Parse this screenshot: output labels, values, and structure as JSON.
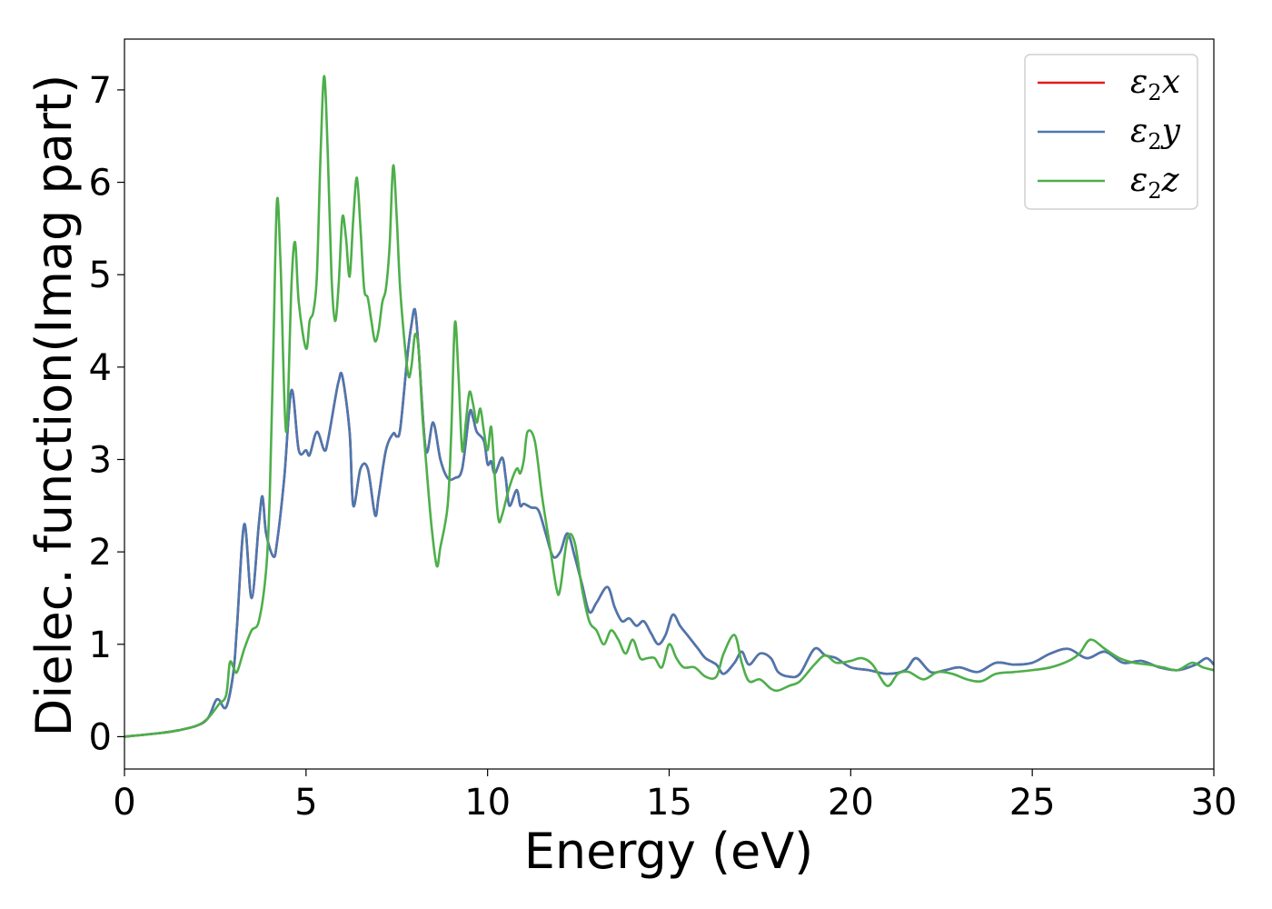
{
  "chart_data": {
    "type": "line",
    "xlabel": "Energy (eV)",
    "ylabel": "Dielec. function(Imag part)",
    "xlim": [
      0,
      30
    ],
    "ylim": [
      -0.35,
      7.55
    ],
    "xticks": [
      0,
      5,
      10,
      15,
      20,
      25,
      30
    ],
    "yticks": [
      0,
      1,
      2,
      3,
      4,
      5,
      6,
      7
    ],
    "grid": false,
    "legend_position": "top-right",
    "series": [
      {
        "name": "ε₂x",
        "legend_base": "ε",
        "legend_sub": "2",
        "legend_var": "x",
        "color": "#e41a1c",
        "x": [
          0,
          1,
          1.5,
          2,
          2.3,
          2.5,
          2.6,
          2.8,
          3.0,
          3.1,
          3.3,
          3.5,
          3.7,
          3.8,
          3.9,
          4.1,
          4.2,
          4.4,
          4.6,
          4.8,
          5.0,
          5.1,
          5.3,
          5.5,
          5.6,
          5.8,
          5.9,
          6.0,
          6.2,
          6.3,
          6.5,
          6.7,
          6.9,
          7.0,
          7.2,
          7.4,
          7.5,
          7.6,
          7.8,
          7.9,
          8.0,
          8.1,
          8.3,
          8.5,
          8.7,
          8.9,
          9.1,
          9.3,
          9.5,
          9.6,
          9.7,
          9.9,
          10.0,
          10.1,
          10.2,
          10.4,
          10.5,
          10.6,
          10.8,
          10.9,
          11.0,
          11.2,
          11.4,
          11.6,
          11.8,
          12.0,
          12.2,
          12.4,
          12.6,
          12.8,
          13.0,
          13.3,
          13.5,
          13.7,
          13.9,
          14.1,
          14.3,
          14.5,
          14.7,
          14.9,
          15.1,
          15.3,
          15.5,
          15.8,
          16.0,
          16.3,
          16.5,
          16.8,
          17.0,
          17.2,
          17.5,
          17.8,
          18.0,
          18.3,
          18.6,
          19.0,
          19.3,
          19.6,
          20.0,
          20.5,
          21.0,
          21.5,
          21.8,
          22.2,
          22.6,
          23.0,
          23.5,
          24.0,
          24.5,
          25.0,
          25.5,
          26.0,
          26.5,
          27.0,
          27.5,
          28.0,
          28.5,
          29.0,
          29.5,
          29.8,
          30.0
        ],
        "y": [
          0,
          0.04,
          0.07,
          0.12,
          0.2,
          0.38,
          0.4,
          0.32,
          0.7,
          1.2,
          2.3,
          1.5,
          2.3,
          2.6,
          2.2,
          1.95,
          2.1,
          2.8,
          3.75,
          3.1,
          3.1,
          3.05,
          3.3,
          3.1,
          3.2,
          3.65,
          3.85,
          3.9,
          3.3,
          2.5,
          2.9,
          2.9,
          2.4,
          2.6,
          3.1,
          3.28,
          3.25,
          3.35,
          4.15,
          4.45,
          4.62,
          4.2,
          3.1,
          3.4,
          3.0,
          2.8,
          2.8,
          2.9,
          3.5,
          3.45,
          3.3,
          3.2,
          2.95,
          2.98,
          2.85,
          3.02,
          2.8,
          2.5,
          2.67,
          2.5,
          2.52,
          2.48,
          2.45,
          2.2,
          1.95,
          2.0,
          2.2,
          1.95,
          1.65,
          1.35,
          1.45,
          1.62,
          1.4,
          1.25,
          1.28,
          1.2,
          1.25,
          1.12,
          1.0,
          1.1,
          1.32,
          1.2,
          1.1,
          0.95,
          0.85,
          0.78,
          0.68,
          0.8,
          0.92,
          0.78,
          0.9,
          0.85,
          0.7,
          0.65,
          0.68,
          0.95,
          0.88,
          0.85,
          0.75,
          0.72,
          0.68,
          0.72,
          0.85,
          0.7,
          0.72,
          0.75,
          0.7,
          0.8,
          0.78,
          0.8,
          0.9,
          0.95,
          0.85,
          0.92,
          0.8,
          0.82,
          0.75,
          0.72,
          0.78,
          0.85,
          0.78
        ]
      },
      {
        "name": "ε₂y",
        "legend_base": "ε",
        "legend_sub": "2",
        "legend_var": "y",
        "color": "#4a78b0",
        "x": [
          0,
          1,
          1.5,
          2,
          2.3,
          2.5,
          2.6,
          2.8,
          3.0,
          3.1,
          3.3,
          3.5,
          3.7,
          3.8,
          3.9,
          4.1,
          4.2,
          4.4,
          4.6,
          4.8,
          5.0,
          5.1,
          5.3,
          5.5,
          5.6,
          5.8,
          5.9,
          6.0,
          6.2,
          6.3,
          6.5,
          6.7,
          6.9,
          7.0,
          7.2,
          7.4,
          7.5,
          7.6,
          7.8,
          7.9,
          8.0,
          8.1,
          8.3,
          8.5,
          8.7,
          8.9,
          9.1,
          9.3,
          9.5,
          9.6,
          9.7,
          9.9,
          10.0,
          10.1,
          10.2,
          10.4,
          10.5,
          10.6,
          10.8,
          10.9,
          11.0,
          11.2,
          11.4,
          11.6,
          11.8,
          12.0,
          12.2,
          12.4,
          12.6,
          12.8,
          13.0,
          13.3,
          13.5,
          13.7,
          13.9,
          14.1,
          14.3,
          14.5,
          14.7,
          14.9,
          15.1,
          15.3,
          15.5,
          15.8,
          16.0,
          16.3,
          16.5,
          16.8,
          17.0,
          17.2,
          17.5,
          17.8,
          18.0,
          18.3,
          18.6,
          19.0,
          19.3,
          19.6,
          20.0,
          20.5,
          21.0,
          21.5,
          21.8,
          22.2,
          22.6,
          23.0,
          23.5,
          24.0,
          24.5,
          25.0,
          25.5,
          26.0,
          26.5,
          27.0,
          27.5,
          28.0,
          28.5,
          29.0,
          29.5,
          29.8,
          30.0
        ],
        "y": [
          0,
          0.04,
          0.07,
          0.12,
          0.2,
          0.38,
          0.4,
          0.32,
          0.7,
          1.2,
          2.3,
          1.5,
          2.3,
          2.6,
          2.2,
          1.95,
          2.1,
          2.8,
          3.75,
          3.1,
          3.1,
          3.05,
          3.3,
          3.1,
          3.2,
          3.65,
          3.85,
          3.9,
          3.3,
          2.5,
          2.9,
          2.9,
          2.4,
          2.6,
          3.1,
          3.28,
          3.25,
          3.35,
          4.15,
          4.45,
          4.62,
          4.2,
          3.1,
          3.4,
          3.0,
          2.8,
          2.8,
          2.9,
          3.5,
          3.45,
          3.3,
          3.2,
          2.95,
          2.98,
          2.85,
          3.02,
          2.8,
          2.5,
          2.67,
          2.5,
          2.52,
          2.48,
          2.45,
          2.2,
          1.95,
          2.0,
          2.2,
          1.95,
          1.65,
          1.35,
          1.45,
          1.62,
          1.4,
          1.25,
          1.28,
          1.2,
          1.25,
          1.12,
          1.0,
          1.1,
          1.32,
          1.2,
          1.1,
          0.95,
          0.85,
          0.78,
          0.68,
          0.8,
          0.92,
          0.78,
          0.9,
          0.85,
          0.7,
          0.65,
          0.68,
          0.95,
          0.88,
          0.85,
          0.75,
          0.72,
          0.68,
          0.72,
          0.85,
          0.7,
          0.72,
          0.75,
          0.7,
          0.8,
          0.78,
          0.8,
          0.9,
          0.95,
          0.85,
          0.92,
          0.8,
          0.82,
          0.75,
          0.72,
          0.78,
          0.85,
          0.78
        ]
      },
      {
        "name": "ε₂z",
        "legend_base": "ε",
        "legend_sub": "2",
        "legend_var": "z",
        "color": "#4daf4a",
        "x": [
          0,
          1,
          1.5,
          2,
          2.3,
          2.6,
          2.8,
          2.9,
          3.0,
          3.1,
          3.3,
          3.5,
          3.7,
          3.9,
          4.0,
          4.1,
          4.2,
          4.3,
          4.45,
          4.6,
          4.7,
          4.8,
          5.0,
          5.1,
          5.2,
          5.3,
          5.4,
          5.5,
          5.6,
          5.7,
          5.8,
          5.9,
          6.0,
          6.1,
          6.2,
          6.3,
          6.4,
          6.5,
          6.6,
          6.7,
          6.8,
          6.9,
          7.0,
          7.1,
          7.2,
          7.3,
          7.4,
          7.5,
          7.6,
          7.8,
          7.9,
          8.0,
          8.1,
          8.2,
          8.3,
          8.45,
          8.6,
          8.7,
          8.9,
          9.0,
          9.1,
          9.2,
          9.3,
          9.4,
          9.5,
          9.6,
          9.7,
          9.8,
          9.9,
          10.0,
          10.1,
          10.2,
          10.3,
          10.4,
          10.6,
          10.8,
          10.9,
          11.0,
          11.1,
          11.3,
          11.5,
          11.7,
          11.9,
          12.0,
          12.2,
          12.4,
          12.6,
          12.8,
          13.0,
          13.2,
          13.4,
          13.6,
          13.8,
          14.0,
          14.2,
          14.4,
          14.6,
          14.8,
          15.0,
          15.2,
          15.4,
          15.7,
          16.0,
          16.3,
          16.5,
          16.8,
          17.0,
          17.2,
          17.5,
          17.8,
          18.0,
          18.3,
          18.6,
          19.0,
          19.3,
          19.6,
          20.0,
          20.3,
          20.6,
          21.0,
          21.3,
          21.6,
          22.0,
          22.4,
          22.8,
          23.2,
          23.6,
          24.0,
          24.5,
          25.0,
          25.5,
          26.0,
          26.3,
          26.6,
          27.0,
          27.4,
          27.8,
          28.2,
          28.6,
          29.0,
          29.4,
          29.7,
          30.0
        ],
        "y": [
          0,
          0.04,
          0.07,
          0.12,
          0.2,
          0.35,
          0.45,
          0.8,
          0.75,
          0.7,
          0.95,
          1.15,
          1.25,
          1.8,
          2.6,
          4.2,
          5.8,
          5.1,
          3.3,
          4.9,
          5.35,
          4.7,
          4.2,
          4.5,
          4.6,
          5.0,
          6.3,
          7.15,
          6.3,
          5.0,
          4.5,
          4.9,
          5.62,
          5.4,
          4.98,
          5.6,
          6.05,
          5.5,
          4.85,
          4.75,
          4.5,
          4.28,
          4.4,
          4.7,
          4.85,
          5.3,
          6.18,
          5.6,
          4.8,
          3.95,
          4.0,
          4.35,
          4.2,
          3.5,
          3.0,
          2.3,
          1.85,
          2.05,
          2.5,
          3.3,
          4.48,
          3.9,
          3.1,
          3.4,
          3.73,
          3.6,
          3.4,
          3.55,
          3.3,
          3.1,
          3.35,
          2.8,
          2.35,
          2.4,
          2.7,
          2.9,
          2.85,
          3.0,
          3.3,
          3.2,
          2.6,
          2.1,
          1.6,
          1.6,
          2.15,
          2.1,
          1.6,
          1.25,
          1.15,
          1.0,
          1.15,
          1.05,
          0.9,
          1.05,
          0.85,
          0.85,
          0.85,
          0.75,
          1.0,
          0.85,
          0.75,
          0.75,
          0.65,
          0.65,
          0.9,
          1.1,
          0.8,
          0.6,
          0.62,
          0.52,
          0.5,
          0.55,
          0.6,
          0.78,
          0.88,
          0.8,
          0.82,
          0.85,
          0.78,
          0.55,
          0.68,
          0.7,
          0.62,
          0.7,
          0.68,
          0.62,
          0.6,
          0.68,
          0.7,
          0.72,
          0.75,
          0.82,
          0.9,
          1.05,
          0.95,
          0.85,
          0.8,
          0.78,
          0.75,
          0.72,
          0.8,
          0.75,
          0.72
        ]
      }
    ]
  }
}
